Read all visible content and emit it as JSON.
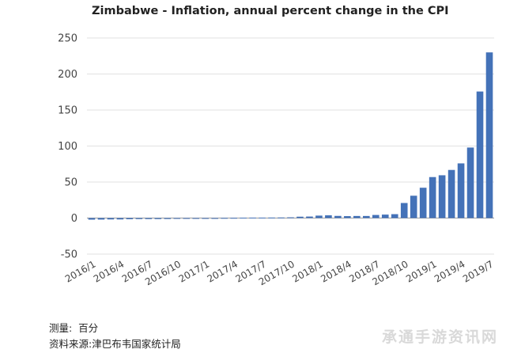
{
  "chart_data": {
    "type": "bar",
    "title": "Zimbabwe - Inflation, annual percent change in the CPI",
    "xlabel": "",
    "ylabel": "",
    "ylim": [
      -50,
      250
    ],
    "yticks": [
      -50,
      0,
      50,
      100,
      150,
      200,
      250
    ],
    "grid": "horizontal",
    "bar_color": "#4472b8",
    "x_tick_labels": [
      "2016/1",
      "2016/4",
      "2016/7",
      "2016/10",
      "2017/1",
      "2017/4",
      "2017/7",
      "2017/10",
      "2018/1",
      "2018/4",
      "2018/7",
      "2018/10",
      "2019/1",
      "2019/4",
      "2019/7"
    ],
    "categories": [
      "2016/1",
      "2016/2",
      "2016/3",
      "2016/4",
      "2016/5",
      "2016/6",
      "2016/7",
      "2016/8",
      "2016/9",
      "2016/10",
      "2016/11",
      "2016/12",
      "2017/1",
      "2017/2",
      "2017/3",
      "2017/4",
      "2017/5",
      "2017/6",
      "2017/7",
      "2017/8",
      "2017/9",
      "2017/10",
      "2017/11",
      "2017/12",
      "2018/1",
      "2018/2",
      "2018/3",
      "2018/4",
      "2018/5",
      "2018/6",
      "2018/7",
      "2018/8",
      "2018/9",
      "2018/10",
      "2018/11",
      "2018/12",
      "2019/1",
      "2019/2",
      "2019/3",
      "2019/4",
      "2019/5",
      "2019/6",
      "2019/7"
    ],
    "values": [
      -2.2,
      -2.1,
      -1.9,
      -1.9,
      -1.6,
      -1.4,
      -1.4,
      -1.4,
      -1.3,
      -1.1,
      -0.9,
      -0.9,
      -0.2,
      -0.1,
      0.2,
      0.3,
      0.5,
      0.6,
      0.6,
      0.7,
      0.8,
      1.0,
      1.9,
      2.1,
      3.4,
      3.8,
      3.0,
      2.7,
      2.9,
      2.9,
      4.3,
      4.8,
      5.4,
      20.9,
      31.0,
      42.1,
      56.9,
      59.4,
      66.8,
      75.9,
      97.9,
      175.7,
      230.0
    ]
  },
  "source": {
    "unit_label": "测量:",
    "unit_value": "百分",
    "origin_label": "资料来源:",
    "origin_value": "津巴布韦国家统计局"
  },
  "watermark": "承通手游资讯网"
}
